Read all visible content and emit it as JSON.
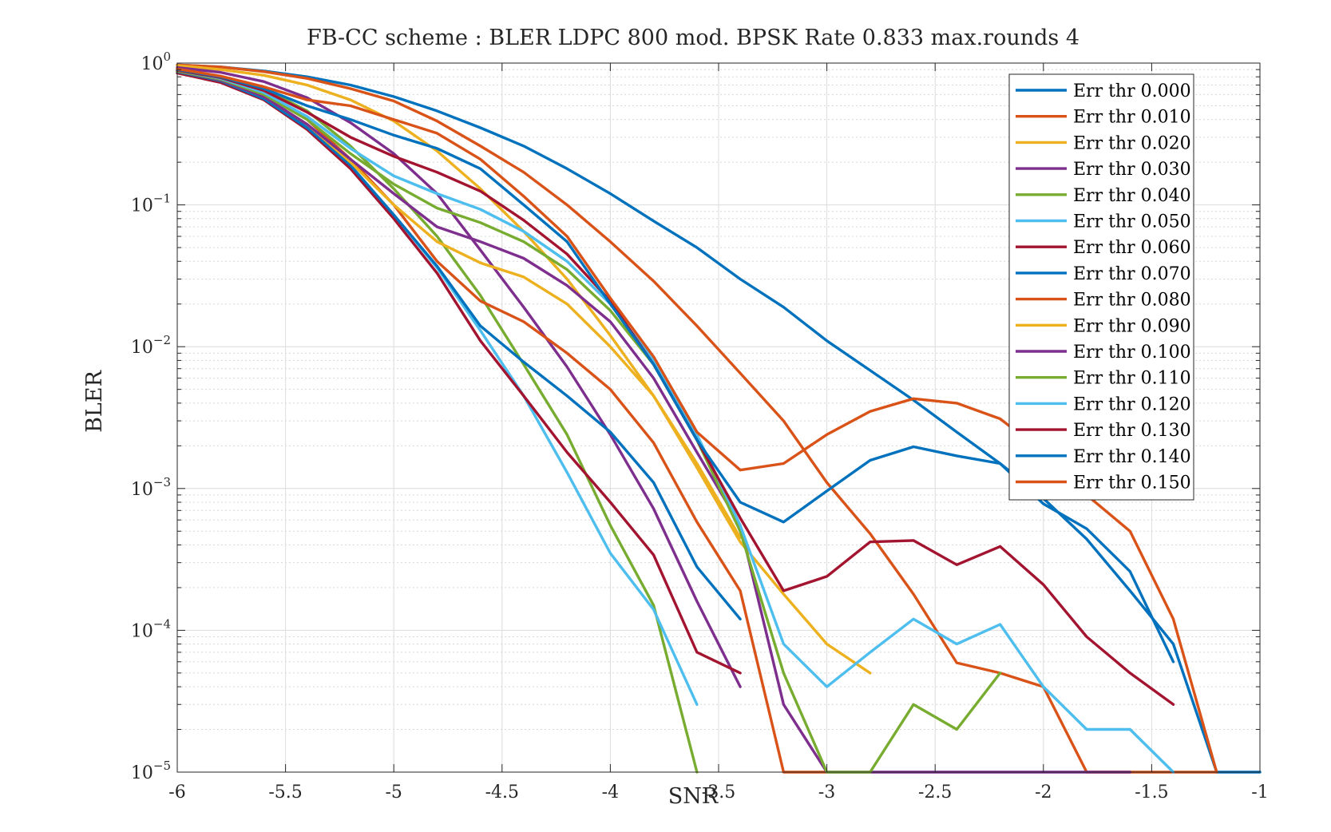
{
  "chart_data": {
    "type": "line",
    "title": "FB-CC scheme : BLER LDPC 800 mod. BPSK Rate 0.833 max.rounds 4",
    "xlabel": "SNR",
    "ylabel": "BLER",
    "xlim": [
      -6,
      -1
    ],
    "ylim": [
      1e-05,
      1
    ],
    "yscale": "log",
    "grid": true,
    "minor_grid": true,
    "legend_position": "top-right",
    "x_tick_labels": [
      "-6",
      "-5.5",
      "-5",
      "-4.5",
      "-4",
      "-3.5",
      "-3",
      "-2.5",
      "-2",
      "-1.5",
      "-1"
    ],
    "y_tick_labels": [
      {
        "base": "10",
        "exp": "−5"
      },
      {
        "base": "10",
        "exp": "−4"
      },
      {
        "base": "10",
        "exp": "−3"
      },
      {
        "base": "10",
        "exp": "−2"
      },
      {
        "base": "10",
        "exp": "−1"
      },
      {
        "base": "10",
        "exp": "0"
      }
    ],
    "series": [
      {
        "name": "Err thr 0.000",
        "color": "#0072BD",
        "x": [
          -6,
          -5.8,
          -5.6,
          -5.4,
          -5.2,
          -5,
          -4.8,
          -4.6,
          -4.4,
          -4.2,
          -4,
          -3.8,
          -3.6,
          -3.4,
          -3.2,
          -3,
          -2.8,
          -2.6,
          -2.4,
          -2.2,
          -2,
          -1.8,
          -1.6,
          -1.4,
          -1.2,
          -1
        ],
        "y": [
          0.97,
          0.94,
          0.88,
          0.8,
          0.7,
          0.58,
          0.46,
          0.35,
          0.26,
          0.18,
          0.12,
          0.077,
          0.05,
          0.03,
          0.019,
          0.011,
          0.0068,
          0.0042,
          0.0025,
          0.0015,
          0.00085,
          0.00044,
          0.00019,
          8e-05,
          1e-05,
          1e-05
        ]
      },
      {
        "name": "Err thr 0.010",
        "color": "#D95319",
        "x": [
          -6,
          -5.8,
          -5.6,
          -5.4,
          -5.2,
          -5,
          -4.8,
          -4.6,
          -4.4,
          -4.2,
          -4,
          -3.8,
          -3.6,
          -3.4,
          -3.2,
          -3,
          -2.8,
          -2.6,
          -2.4,
          -2.2,
          -2,
          -1.8,
          -1.6,
          -1.4,
          -1.2
        ],
        "y": [
          0.97,
          0.94,
          0.87,
          0.78,
          0.66,
          0.54,
          0.39,
          0.26,
          0.17,
          0.1,
          0.055,
          0.029,
          0.014,
          0.0065,
          0.003,
          0.0011,
          0.00048,
          0.00018,
          5.9e-05,
          5e-05,
          4e-05,
          1e-05,
          1e-05,
          1e-05,
          1e-05
        ]
      },
      {
        "name": "Err thr 0.020",
        "color": "#EDB120",
        "x": [
          -6,
          -5.8,
          -5.6,
          -5.4,
          -5.2,
          -5,
          -4.8,
          -4.6,
          -4.4,
          -4.2,
          -4,
          -3.8,
          -3.6,
          -3.4,
          -3.2,
          -3,
          -2.8
        ],
        "y": [
          0.96,
          0.9,
          0.82,
          0.7,
          0.55,
          0.39,
          0.24,
          0.13,
          0.065,
          0.03,
          0.012,
          0.0045,
          0.0014,
          0.00042,
          0.00018,
          8e-05,
          5e-05
        ]
      },
      {
        "name": "Err thr 0.030",
        "color": "#7E2F8E",
        "x": [
          -6,
          -5.8,
          -5.6,
          -5.4,
          -5.2,
          -5,
          -4.8,
          -4.6,
          -4.4,
          -4.2,
          -4,
          -3.8,
          -3.6,
          -3.4
        ],
        "y": [
          0.93,
          0.86,
          0.74,
          0.57,
          0.38,
          0.23,
          0.12,
          0.048,
          0.019,
          0.0072,
          0.0024,
          0.00072,
          0.00016,
          4e-05
        ]
      },
      {
        "name": "Err thr 0.040",
        "color": "#77AC30",
        "x": [
          -6,
          -5.8,
          -5.6,
          -5.4,
          -5.2,
          -5,
          -4.8,
          -4.6,
          -4.4,
          -4.2,
          -4,
          -3.8,
          -3.6
        ],
        "y": [
          0.9,
          0.8,
          0.66,
          0.46,
          0.26,
          0.13,
          0.06,
          0.023,
          0.0075,
          0.0024,
          0.00055,
          0.00015,
          1e-05
        ]
      },
      {
        "name": "Err thr 0.050",
        "color": "#4DBEEE",
        "x": [
          -6,
          -5.8,
          -5.6,
          -5.4,
          -5.2,
          -5,
          -4.8,
          -4.6,
          -4.4,
          -4.2,
          -4,
          -3.8,
          -3.6
        ],
        "y": [
          0.87,
          0.76,
          0.58,
          0.36,
          0.19,
          0.085,
          0.036,
          0.013,
          0.0045,
          0.0013,
          0.00035,
          0.00014,
          3e-05
        ]
      },
      {
        "name": "Err thr 0.060",
        "color": "#A2142F",
        "x": [
          -6,
          -5.8,
          -5.6,
          -5.4,
          -5.2,
          -5,
          -4.8,
          -4.6,
          -4.4,
          -4.2,
          -4,
          -3.8,
          -3.6,
          -3.4
        ],
        "y": [
          0.85,
          0.73,
          0.55,
          0.34,
          0.18,
          0.08,
          0.033,
          0.011,
          0.0045,
          0.0018,
          0.0008,
          0.00034,
          7e-05,
          5e-05
        ]
      },
      {
        "name": "Err thr 0.070",
        "color": "#0072BD",
        "x": [
          -6,
          -5.8,
          -5.6,
          -5.4,
          -5.2,
          -5,
          -4.8,
          -4.6,
          -4.4,
          -4.2,
          -4,
          -3.8,
          -3.6,
          -3.4
        ],
        "y": [
          0.87,
          0.75,
          0.56,
          0.35,
          0.19,
          0.085,
          0.037,
          0.014,
          0.0078,
          0.0045,
          0.0025,
          0.0011,
          0.00028,
          0.00012
        ]
      },
      {
        "name": "Err thr 0.080",
        "color": "#D95319",
        "x": [
          -6,
          -5.8,
          -5.6,
          -5.4,
          -5.2,
          -5,
          -4.8,
          -4.6,
          -4.4,
          -4.2,
          -4,
          -3.8,
          -3.6,
          -3.4,
          -3.2,
          -3
        ],
        "y": [
          0.88,
          0.77,
          0.6,
          0.4,
          0.21,
          0.1,
          0.04,
          0.021,
          0.015,
          0.009,
          0.005,
          0.0021,
          0.00058,
          0.00019,
          1e-05,
          1e-05
        ]
      },
      {
        "name": "Err thr 0.090",
        "color": "#EDB120",
        "x": [
          -6,
          -5.8,
          -5.6,
          -5.4,
          -5.2,
          -5,
          -4.8,
          -4.6,
          -4.4,
          -4.2,
          -4,
          -3.8,
          -3.6,
          -3.4
        ],
        "y": [
          0.88,
          0.76,
          0.58,
          0.37,
          0.2,
          0.1,
          0.055,
          0.039,
          0.031,
          0.02,
          0.01,
          0.0045,
          0.0015,
          0.00045
        ]
      },
      {
        "name": "Err thr 0.100",
        "color": "#7E2F8E",
        "x": [
          -6,
          -5.8,
          -5.6,
          -5.4,
          -5.2,
          -5,
          -4.8,
          -4.6,
          -4.4,
          -4.2,
          -4,
          -3.8,
          -3.6,
          -3.4,
          -3.2,
          -3,
          -2.8,
          -2.6,
          -2.4,
          -2.2,
          -2,
          -1.8,
          -1.6
        ],
        "y": [
          0.88,
          0.76,
          0.58,
          0.37,
          0.21,
          0.12,
          0.07,
          0.055,
          0.042,
          0.027,
          0.015,
          0.006,
          0.0018,
          0.00055,
          3e-05,
          1e-05,
          1e-05,
          1e-05,
          1e-05,
          1e-05,
          1e-05,
          1e-05,
          1e-05
        ]
      },
      {
        "name": "Err thr 0.110",
        "color": "#77AC30",
        "x": [
          -6,
          -5.8,
          -5.6,
          -5.4,
          -5.2,
          -5,
          -4.8,
          -4.6,
          -4.4,
          -4.2,
          -4,
          -3.8,
          -3.6,
          -3.4,
          -3.2,
          -3,
          -2.8,
          -2.6,
          -2.4,
          -2.2
        ],
        "y": [
          0.88,
          0.77,
          0.6,
          0.4,
          0.23,
          0.14,
          0.095,
          0.075,
          0.055,
          0.035,
          0.018,
          0.0075,
          0.0022,
          0.0005,
          5e-05,
          1e-05,
          1e-05,
          3e-05,
          2e-05,
          5e-05
        ]
      },
      {
        "name": "Err thr 0.120",
        "color": "#4DBEEE",
        "x": [
          -6,
          -5.8,
          -5.6,
          -5.4,
          -5.2,
          -5,
          -4.8,
          -4.6,
          -4.4,
          -4.2,
          -4,
          -3.8,
          -3.6,
          -3.4,
          -3.2,
          -3,
          -2.8,
          -2.6,
          -2.4,
          -2.2,
          -2,
          -1.8,
          -1.6,
          -1.4
        ],
        "y": [
          0.89,
          0.78,
          0.62,
          0.42,
          0.25,
          0.16,
          0.12,
          0.093,
          0.065,
          0.04,
          0.02,
          0.008,
          0.0024,
          0.00055,
          8e-05,
          4e-05,
          7e-05,
          0.00012,
          8e-05,
          0.00011,
          4e-05,
          2e-05,
          2e-05,
          1e-05
        ]
      },
      {
        "name": "Err thr 0.130",
        "color": "#A2142F",
        "x": [
          -6,
          -5.8,
          -5.6,
          -5.4,
          -5.2,
          -5,
          -4.8,
          -4.6,
          -4.4,
          -4.2,
          -4,
          -3.8,
          -3.6,
          -3.4,
          -3.2,
          -3,
          -2.8,
          -2.6,
          -2.4,
          -2.2,
          -2,
          -1.8,
          -1.6,
          -1.4
        ],
        "y": [
          0.89,
          0.79,
          0.64,
          0.45,
          0.3,
          0.22,
          0.17,
          0.125,
          0.078,
          0.045,
          0.021,
          0.0075,
          0.0022,
          0.00062,
          0.00019,
          0.00024,
          0.00042,
          0.00043,
          0.00029,
          0.00039,
          0.00021,
          9e-05,
          5e-05,
          3e-05
        ]
      },
      {
        "name": "Err thr 0.140",
        "color": "#0072BD",
        "x": [
          -6,
          -5.8,
          -5.6,
          -5.4,
          -5.2,
          -5,
          -4.8,
          -4.6,
          -4.4,
          -4.2,
          -4,
          -3.8,
          -3.6,
          -3.4,
          -3.2,
          -3,
          -2.8,
          -2.6,
          -2.4,
          -2.2,
          -2,
          -1.8,
          -1.6,
          -1.4
        ],
        "y": [
          0.9,
          0.8,
          0.66,
          0.5,
          0.4,
          0.31,
          0.25,
          0.18,
          0.1,
          0.055,
          0.02,
          0.0075,
          0.0022,
          0.0008,
          0.00058,
          0.00096,
          0.00158,
          0.00197,
          0.0017,
          0.0015,
          0.00078,
          0.00052,
          0.00026,
          6e-05
        ]
      },
      {
        "name": "Err thr 0.150",
        "color": "#D95319",
        "x": [
          -6,
          -5.8,
          -5.6,
          -5.4,
          -5.2,
          -5,
          -4.8,
          -4.6,
          -4.4,
          -4.2,
          -4,
          -3.8,
          -3.6,
          -3.4,
          -3.2,
          -3,
          -2.8,
          -2.6,
          -2.4,
          -2.2,
          -2,
          -1.8,
          -1.6,
          -1.4,
          -1.2
        ],
        "y": [
          0.91,
          0.81,
          0.68,
          0.55,
          0.5,
          0.4,
          0.32,
          0.21,
          0.115,
          0.06,
          0.022,
          0.0085,
          0.0025,
          0.00135,
          0.0015,
          0.0024,
          0.0035,
          0.0043,
          0.004,
          0.0031,
          0.0018,
          0.0009,
          0.0005,
          0.00012,
          1e-05
        ]
      }
    ]
  }
}
